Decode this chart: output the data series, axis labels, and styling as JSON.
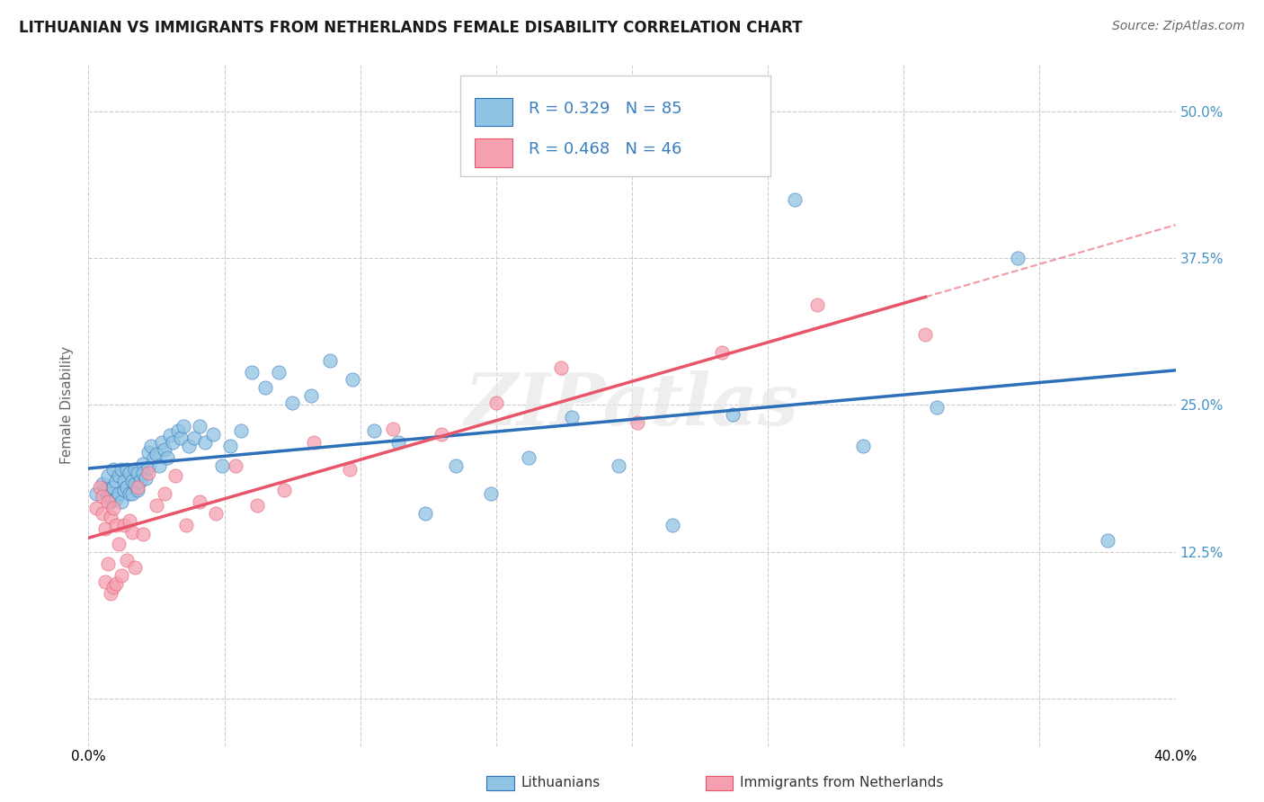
{
  "title": "LITHUANIAN VS IMMIGRANTS FROM NETHERLANDS FEMALE DISABILITY CORRELATION CHART",
  "source": "Source: ZipAtlas.com",
  "ylabel": "Female Disability",
  "ytick_labels": [
    "",
    "12.5%",
    "25.0%",
    "37.5%",
    "50.0%"
  ],
  "ytick_values": [
    0.0,
    0.125,
    0.25,
    0.375,
    0.5
  ],
  "xlim": [
    0.0,
    0.4
  ],
  "ylim": [
    -0.04,
    0.54
  ],
  "r_blue": "0.329",
  "n_blue": "85",
  "r_pink": "0.468",
  "n_pink": "46",
  "blue_color": "#90c4e4",
  "pink_color": "#f4a0b0",
  "blue_line_color": "#2e6fba",
  "pink_line_color": "#e8556a",
  "watermark": "ZIPatlas",
  "legend_label_blue": "Lithuanians",
  "legend_label_pink": "Immigrants from Netherlands",
  "blue_x": [
    0.003,
    0.005,
    0.006,
    0.007,
    0.007,
    0.008,
    0.008,
    0.009,
    0.009,
    0.01,
    0.01,
    0.011,
    0.011,
    0.012,
    0.012,
    0.013,
    0.013,
    0.014,
    0.014,
    0.015,
    0.015,
    0.016,
    0.016,
    0.017,
    0.017,
    0.018,
    0.018,
    0.019,
    0.02,
    0.02,
    0.021,
    0.022,
    0.022,
    0.023,
    0.024,
    0.025,
    0.026,
    0.027,
    0.028,
    0.029,
    0.03,
    0.031,
    0.033,
    0.034,
    0.035,
    0.037,
    0.039,
    0.041,
    0.043,
    0.046,
    0.049,
    0.052,
    0.056,
    0.06,
    0.065,
    0.07,
    0.075,
    0.082,
    0.089,
    0.097,
    0.105,
    0.114,
    0.124,
    0.135,
    0.148,
    0.162,
    0.178,
    0.195,
    0.215,
    0.237,
    0.26,
    0.285,
    0.312,
    0.342,
    0.375
  ],
  "blue_y": [
    0.175,
    0.183,
    0.178,
    0.172,
    0.19,
    0.175,
    0.168,
    0.18,
    0.195,
    0.17,
    0.185,
    0.175,
    0.19,
    0.168,
    0.195,
    0.178,
    0.185,
    0.18,
    0.195,
    0.175,
    0.192,
    0.185,
    0.175,
    0.195,
    0.183,
    0.178,
    0.192,
    0.185,
    0.2,
    0.192,
    0.188,
    0.21,
    0.197,
    0.215,
    0.205,
    0.208,
    0.198,
    0.218,
    0.212,
    0.205,
    0.224,
    0.218,
    0.228,
    0.222,
    0.232,
    0.215,
    0.222,
    0.232,
    0.218,
    0.225,
    0.198,
    0.215,
    0.228,
    0.278,
    0.265,
    0.278,
    0.252,
    0.258,
    0.288,
    0.272,
    0.228,
    0.218,
    0.158,
    0.198,
    0.175,
    0.205,
    0.24,
    0.198,
    0.148,
    0.242,
    0.425,
    0.215,
    0.248,
    0.375,
    0.135
  ],
  "pink_x": [
    0.003,
    0.004,
    0.005,
    0.005,
    0.006,
    0.006,
    0.007,
    0.007,
    0.008,
    0.008,
    0.009,
    0.009,
    0.01,
    0.01,
    0.011,
    0.012,
    0.013,
    0.014,
    0.015,
    0.016,
    0.017,
    0.018,
    0.02,
    0.022,
    0.025,
    0.028,
    0.032,
    0.036,
    0.041,
    0.047,
    0.054,
    0.062,
    0.072,
    0.083,
    0.096,
    0.112,
    0.13,
    0.15,
    0.174,
    0.202,
    0.233,
    0.268,
    0.308
  ],
  "pink_y": [
    0.162,
    0.18,
    0.158,
    0.172,
    0.1,
    0.145,
    0.115,
    0.168,
    0.09,
    0.155,
    0.095,
    0.162,
    0.098,
    0.148,
    0.132,
    0.105,
    0.148,
    0.118,
    0.152,
    0.142,
    0.112,
    0.18,
    0.14,
    0.192,
    0.165,
    0.175,
    0.19,
    0.148,
    0.168,
    0.158,
    0.198,
    0.165,
    0.178,
    0.218,
    0.195,
    0.23,
    0.225,
    0.252,
    0.282,
    0.235,
    0.295,
    0.335,
    0.31
  ]
}
